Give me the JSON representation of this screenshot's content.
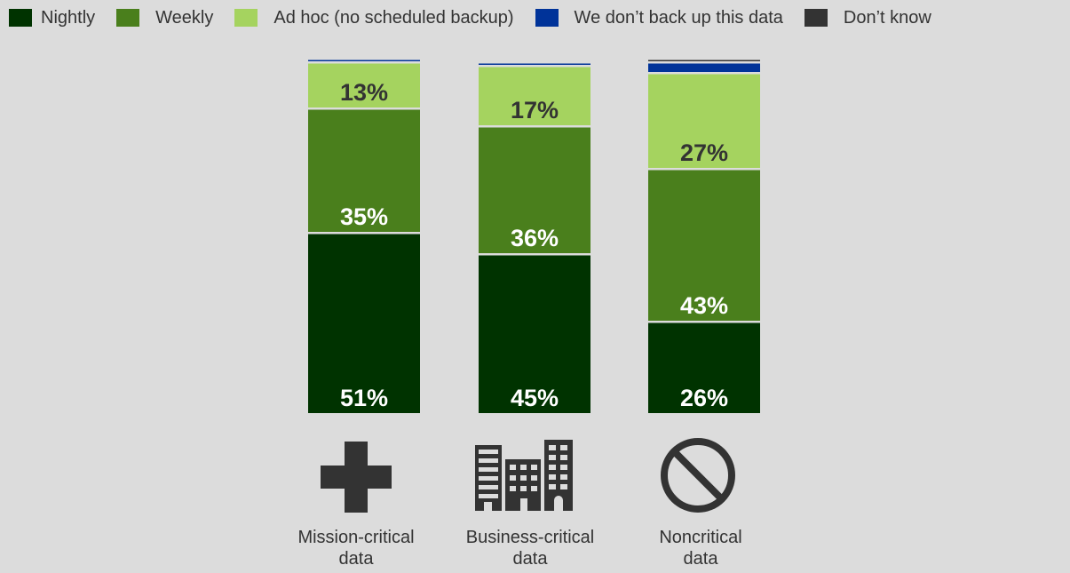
{
  "chart_data": {
    "type": "bar",
    "stacked": true,
    "categories": [
      "Mission-critical data",
      "Business-critical data",
      "Noncritical data"
    ],
    "category_lines": [
      [
        "Mission-critical",
        "data"
      ],
      [
        "Business-critical",
        "data"
      ],
      [
        "Noncritical",
        "data"
      ]
    ],
    "category_icons": [
      "plus-icon",
      "buildings-icon",
      "prohibition-icon"
    ],
    "series": [
      {
        "name": "Nightly",
        "values": [
          51,
          45,
          26
        ],
        "color": "#003300",
        "label_color": "#ffffff"
      },
      {
        "name": "Weekly",
        "values": [
          35,
          36,
          43
        ],
        "color": "#4a7f1c",
        "label_color": "#ffffff"
      },
      {
        "name": "Ad hoc (no scheduled backup)",
        "values": [
          13,
          17,
          27
        ],
        "color": "#a5d35f",
        "label_color": "#333333"
      },
      {
        "name": "We don’t back up this data",
        "values": [
          1,
          1,
          3
        ],
        "color": "#003399",
        "label_color": "#ffffff"
      },
      {
        "name": "Don’t know",
        "values": [
          0,
          0,
          1
        ],
        "color": "#333333",
        "label_color": "#ffffff"
      }
    ],
    "data_labels": [
      [
        "51%",
        "35%",
        "13%",
        "",
        ""
      ],
      [
        "45%",
        "36%",
        "17%",
        "",
        ""
      ],
      [
        "26%",
        "43%",
        "27%",
        "",
        ""
      ]
    ],
    "legend_position": "top",
    "grid": false,
    "ylim": [
      0,
      100
    ]
  }
}
